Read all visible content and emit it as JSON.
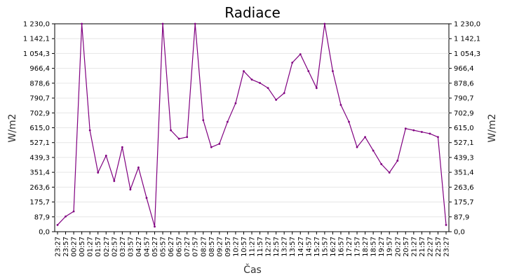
{
  "chart_data": {
    "type": "line",
    "title": "Radiace",
    "xlabel": "Čas",
    "ylabel": "W/m2",
    "ylim": [
      0,
      1230
    ],
    "grid": true,
    "series_color": "#800080",
    "y_ticks": [
      0,
      87.9,
      175.7,
      263.6,
      351.4,
      439.3,
      527.1,
      615.0,
      702.9,
      790.7,
      878.6,
      966.4,
      1054.3,
      1142.1,
      1230.0
    ],
    "y_tick_labels": [
      "0,0",
      "87,9",
      "175,7",
      "263,6",
      "351,4",
      "439,3",
      "527,1",
      "615,0",
      "702,9",
      "790,7",
      "878,6",
      "966,4",
      "1 054,3",
      "1 142,1",
      "1 230,0"
    ],
    "x_tick_labels": [
      "23:27",
      "23:57",
      "00:27",
      "00:57",
      "01:27",
      "01:57",
      "02:27",
      "02:57",
      "03:27",
      "03:57",
      "04:27",
      "04:57",
      "05:27",
      "05:57",
      "06:27",
      "06:57",
      "07:27",
      "07:57",
      "08:27",
      "08:57",
      "09:27",
      "09:57",
      "10:27",
      "10:57",
      "11:27",
      "11:57",
      "12:27",
      "12:57",
      "13:27",
      "13:57",
      "14:27",
      "14:57",
      "15:27",
      "15:57",
      "16:27",
      "16:57",
      "17:27",
      "17:57",
      "18:27",
      "18:57",
      "19:27",
      "19:57",
      "20:27",
      "20:57",
      "21:27",
      "21:57",
      "22:27",
      "22:57",
      "23:27"
    ],
    "series": [
      {
        "x": [
          "23:27",
          "23:57",
          "00:27",
          "00:57",
          "01:27",
          "01:57",
          "02:27",
          "02:57",
          "03:27",
          "03:57",
          "04:27",
          "04:57",
          "05:27",
          "05:57",
          "06:27",
          "06:57",
          "07:27",
          "07:57",
          "08:27",
          "08:57",
          "09:27",
          "09:57",
          "10:27",
          "10:57",
          "11:27",
          "11:57",
          "12:27",
          "12:57",
          "13:27",
          "13:57",
          "14:27",
          "14:57",
          "15:27",
          "15:57",
          "16:27",
          "16:57",
          "17:27",
          "17:57",
          "18:27",
          "18:57",
          "19:27",
          "19:57",
          "20:27",
          "20:57",
          "21:27",
          "21:57",
          "22:27",
          "22:57",
          "23:27"
        ],
        "values": [
          40,
          90,
          120,
          1230,
          600,
          350,
          450,
          300,
          500,
          250,
          380,
          200,
          30,
          1230,
          600,
          550,
          560,
          1230,
          660,
          500,
          520,
          650,
          760,
          950,
          900,
          880,
          850,
          780,
          820,
          1000,
          1050,
          950,
          850,
          1230,
          950,
          750,
          650,
          500,
          560,
          480,
          400,
          350,
          420,
          610,
          600,
          590,
          580,
          560,
          40
        ]
      }
    ]
  }
}
